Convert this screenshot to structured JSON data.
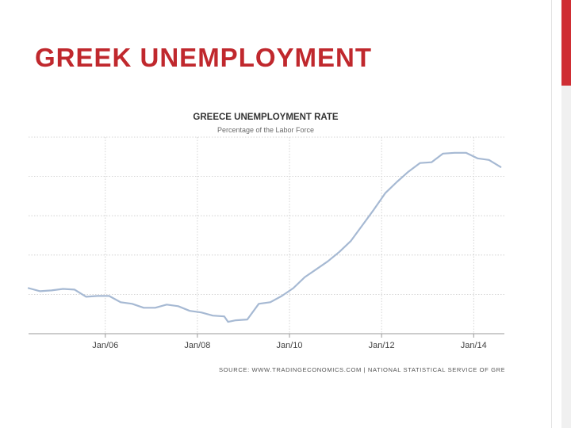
{
  "slide": {
    "title": "GREEK UNEMPLOYMENT"
  },
  "colors": {
    "title": "#c0282d",
    "accent": "#cf2e34",
    "line": "#a6b9d3",
    "grid": "#c9c9c9"
  },
  "chart_data": {
    "type": "line",
    "title": "GREECE UNEMPLOYMENT RATE",
    "subtitle": "Percentage of the Labor Force",
    "source": "SOURCE:  WWW.TRADINGECONOMICS.COM  |  NATIONAL STATISTICAL SERVICE OF GREECE",
    "x_ticks": [
      "Jan/06",
      "Jan/08",
      "Jan/10",
      "Jan/12",
      "Jan/14"
    ],
    "xlim": [
      "2004-05",
      "2014-09"
    ],
    "ylim": [
      5,
      30
    ],
    "grid": true,
    "series": [
      {
        "values": [
          [
            "2004-05",
            10.8
          ],
          [
            "2004-08",
            10.4
          ],
          [
            "2004-11",
            10.5
          ],
          [
            "2005-02",
            10.7
          ],
          [
            "2005-05",
            10.6
          ],
          [
            "2005-08",
            9.7
          ],
          [
            "2005-11",
            9.8
          ],
          [
            "2006-02",
            9.8
          ],
          [
            "2006-05",
            9.0
          ],
          [
            "2006-08",
            8.8
          ],
          [
            "2006-11",
            8.3
          ],
          [
            "2007-02",
            8.3
          ],
          [
            "2007-05",
            8.7
          ],
          [
            "2007-08",
            8.5
          ],
          [
            "2007-11",
            7.9
          ],
          [
            "2008-02",
            7.7
          ],
          [
            "2008-05",
            7.3
          ],
          [
            "2008-08",
            7.2
          ],
          [
            "2008-09",
            6.5
          ],
          [
            "2008-11",
            6.7
          ],
          [
            "2009-02",
            6.8
          ],
          [
            "2009-05",
            8.8
          ],
          [
            "2009-08",
            9.0
          ],
          [
            "2009-11",
            9.8
          ],
          [
            "2010-02",
            10.8
          ],
          [
            "2010-05",
            12.2
          ],
          [
            "2010-08",
            13.2
          ],
          [
            "2010-11",
            14.2
          ],
          [
            "2011-02",
            15.4
          ],
          [
            "2011-05",
            16.8
          ],
          [
            "2011-08",
            18.8
          ],
          [
            "2011-11",
            20.8
          ],
          [
            "2012-02",
            22.9
          ],
          [
            "2012-05",
            24.3
          ],
          [
            "2012-08",
            25.6
          ],
          [
            "2012-11",
            26.7
          ],
          [
            "2013-02",
            26.8
          ],
          [
            "2013-05",
            27.9
          ],
          [
            "2013-08",
            28.0
          ],
          [
            "2013-11",
            28.0
          ],
          [
            "2014-02",
            27.3
          ],
          [
            "2014-05",
            27.1
          ],
          [
            "2014-08",
            26.2
          ]
        ]
      }
    ]
  }
}
